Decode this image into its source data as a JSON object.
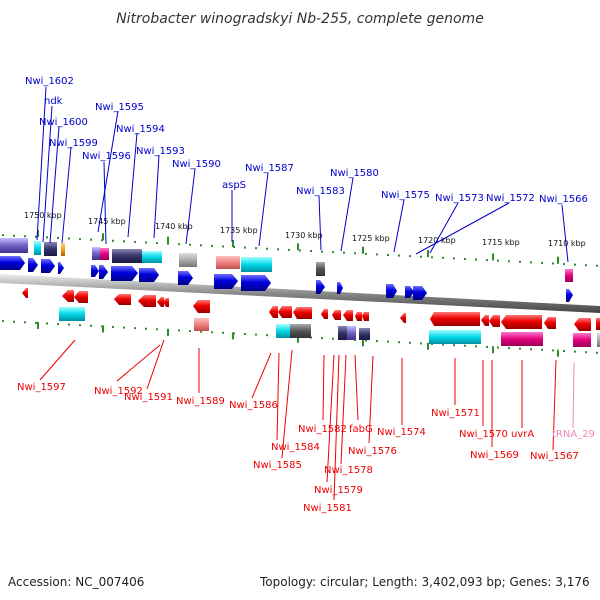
{
  "title": "Nitrobacter winogradskyi Nb-255, complete genome",
  "footer": {
    "accession": "Accession: NC_007406",
    "topology": "Topology: circular; Length: 3,402,093 bp; Genes: 3,176"
  },
  "colors": {
    "forward": "#0000dd",
    "reverse": "#ee0000",
    "rna": "#e4007c",
    "trna_label": "#ee88bb",
    "tick": "#2e8b2e",
    "backbone": "#888888"
  },
  "kbp_ticks": [
    "1750 kbp",
    "1745 kbp",
    "1740 kbp",
    "1735 kbp",
    "1730 kbp",
    "1725 kbp",
    "1720 kbp",
    "1715 kbp",
    "1710 kbp"
  ],
  "top_labels": [
    "Nwi_1602",
    "ndk",
    "Nwi_1600",
    "Nwi_1599",
    "Nwi_1595",
    "Nwi_1594",
    "Nwi_1596",
    "Nwi_1593",
    "Nwi_1590",
    "aspS",
    "Nwi_1587",
    "Nwi_1583",
    "Nwi_1580",
    "Nwi_1575",
    "Nwi_1573",
    "Nwi_1572",
    "Nwi_1566"
  ],
  "bottom_labels": [
    "Nwi_1597",
    "Nwi_1592",
    "Nwi_1591",
    "Nwi_1589",
    "Nwi_1586",
    "Nwi_1584",
    "Nwi_1585",
    "Nwi_1582",
    "fabG",
    "Nwi_1578",
    "Nwi_1579",
    "Nwi_1581",
    "Nwi_1576",
    "Nwi_1574",
    "Nwi_1571",
    "Nwi_1570",
    "uvrA",
    "Nwi_1569",
    "tRNA_29",
    "Nwi_1567"
  ]
}
